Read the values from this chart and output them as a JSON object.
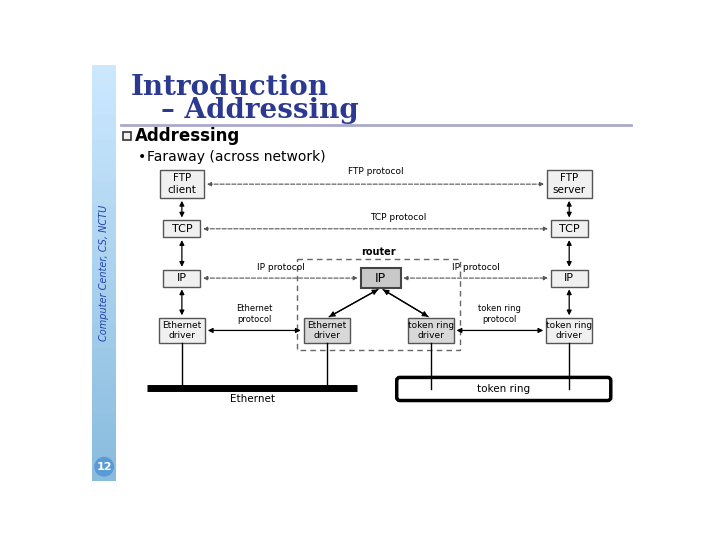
{
  "title1": "Introduction",
  "title2": "– Addressing",
  "section_label": "Addressing",
  "bullet": "Faraway (across network)",
  "sidebar_text": "Computer Center, CS, NCTU",
  "slide_number": "12",
  "bg_color": "#ffffff",
  "sidebar_top_color": "#ddeeff",
  "sidebar_mid_color": "#88bbdd",
  "sidebar_bot_color": "#99ccee",
  "title_color": "#2b3990",
  "section_color": "#000000",
  "node_bg": "#f0f0f0",
  "router_node_bg": "#c8c8c8",
  "driver_bg": "#d8d8d8"
}
